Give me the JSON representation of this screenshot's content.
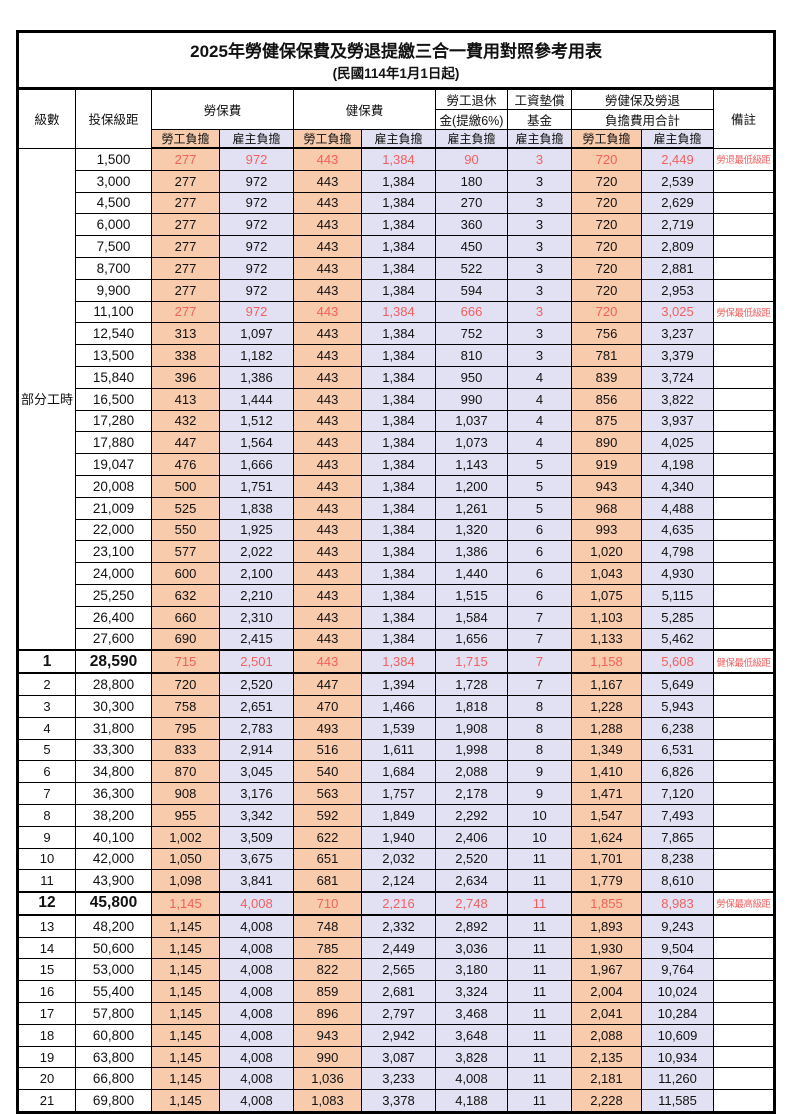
{
  "title": "2025年勞健保保費及勞退提繳三合一費用對照參考用表",
  "subtitle": "(民國114年1月1日起)",
  "header": {
    "level": "級數",
    "bracket": "投保級距",
    "labor_fee": "勞保費",
    "health_fee": "健保費",
    "pension_l1": "勞工退休",
    "pension_l2": "金(提繳6%)",
    "fund_l1": "工資墊償",
    "fund_l2": "基金",
    "total_l1": "勞健保及勞退",
    "total_l2": "負擔費用合計",
    "employee": "勞工負擔",
    "employer": "雇主負擔",
    "remarks": "備註"
  },
  "colors": {
    "employee_bg": "#F8CBAD",
    "employer_bg": "#E2E1F3",
    "highlight_text": "#F25F5F",
    "border": "#000000"
  },
  "table": {
    "part_time_label": "部分工時",
    "part_time_span": 23,
    "rows": [
      {
        "l": "",
        "g": true,
        "b": "1,500",
        "v": [
          "277",
          "972",
          "443",
          "1,384",
          "90",
          "3",
          "720",
          "2,449"
        ],
        "n": "勞退最低級距",
        "red": true
      },
      {
        "l": null,
        "b": "3,000",
        "v": [
          "277",
          "972",
          "443",
          "1,384",
          "180",
          "3",
          "720",
          "2,539"
        ],
        "n": ""
      },
      {
        "l": null,
        "b": "4,500",
        "v": [
          "277",
          "972",
          "443",
          "1,384",
          "270",
          "3",
          "720",
          "2,629"
        ],
        "n": ""
      },
      {
        "l": null,
        "b": "6,000",
        "v": [
          "277",
          "972",
          "443",
          "1,384",
          "360",
          "3",
          "720",
          "2,719"
        ],
        "n": ""
      },
      {
        "l": null,
        "b": "7,500",
        "v": [
          "277",
          "972",
          "443",
          "1,384",
          "450",
          "3",
          "720",
          "2,809"
        ],
        "n": ""
      },
      {
        "l": null,
        "b": "8,700",
        "v": [
          "277",
          "972",
          "443",
          "1,384",
          "522",
          "3",
          "720",
          "2,881"
        ],
        "n": ""
      },
      {
        "l": null,
        "b": "9,900",
        "v": [
          "277",
          "972",
          "443",
          "1,384",
          "594",
          "3",
          "720",
          "2,953"
        ],
        "n": ""
      },
      {
        "l": null,
        "b": "11,100",
        "v": [
          "277",
          "972",
          "443",
          "1,384",
          "666",
          "3",
          "720",
          "3,025"
        ],
        "n": "勞保最低級距",
        "red": true
      },
      {
        "l": null,
        "b": "12,540",
        "v": [
          "313",
          "1,097",
          "443",
          "1,384",
          "752",
          "3",
          "756",
          "3,237"
        ],
        "n": ""
      },
      {
        "l": null,
        "b": "13,500",
        "v": [
          "338",
          "1,182",
          "443",
          "1,384",
          "810",
          "3",
          "781",
          "3,379"
        ],
        "n": ""
      },
      {
        "l": null,
        "b": "15,840",
        "v": [
          "396",
          "1,386",
          "443",
          "1,384",
          "950",
          "4",
          "839",
          "3,724"
        ],
        "n": ""
      },
      {
        "l": null,
        "b": "16,500",
        "v": [
          "413",
          "1,444",
          "443",
          "1,384",
          "990",
          "4",
          "856",
          "3,822"
        ],
        "n": ""
      },
      {
        "l": null,
        "b": "17,280",
        "v": [
          "432",
          "1,512",
          "443",
          "1,384",
          "1,037",
          "4",
          "875",
          "3,937"
        ],
        "n": ""
      },
      {
        "l": null,
        "b": "17,880",
        "v": [
          "447",
          "1,564",
          "443",
          "1,384",
          "1,073",
          "4",
          "890",
          "4,025"
        ],
        "n": ""
      },
      {
        "l": null,
        "b": "19,047",
        "v": [
          "476",
          "1,666",
          "443",
          "1,384",
          "1,143",
          "5",
          "919",
          "4,198"
        ],
        "n": ""
      },
      {
        "l": null,
        "b": "20,008",
        "v": [
          "500",
          "1,751",
          "443",
          "1,384",
          "1,200",
          "5",
          "943",
          "4,340"
        ],
        "n": ""
      },
      {
        "l": null,
        "b": "21,009",
        "v": [
          "525",
          "1,838",
          "443",
          "1,384",
          "1,261",
          "5",
          "968",
          "4,488"
        ],
        "n": ""
      },
      {
        "l": null,
        "b": "22,000",
        "v": [
          "550",
          "1,925",
          "443",
          "1,384",
          "1,320",
          "6",
          "993",
          "4,635"
        ],
        "n": ""
      },
      {
        "l": null,
        "b": "23,100",
        "v": [
          "577",
          "2,022",
          "443",
          "1,384",
          "1,386",
          "6",
          "1,020",
          "4,798"
        ],
        "n": ""
      },
      {
        "l": null,
        "b": "24,000",
        "v": [
          "600",
          "2,100",
          "443",
          "1,384",
          "1,440",
          "6",
          "1,043",
          "4,930"
        ],
        "n": ""
      },
      {
        "l": null,
        "b": "25,250",
        "v": [
          "632",
          "2,210",
          "443",
          "1,384",
          "1,515",
          "6",
          "1,075",
          "5,115"
        ],
        "n": ""
      },
      {
        "l": null,
        "b": "26,400",
        "v": [
          "660",
          "2,310",
          "443",
          "1,384",
          "1,584",
          "7",
          "1,103",
          "5,285"
        ],
        "n": ""
      },
      {
        "l": null,
        "b": "27,600",
        "v": [
          "690",
          "2,415",
          "443",
          "1,384",
          "1,656",
          "7",
          "1,133",
          "5,462"
        ],
        "n": ""
      },
      {
        "l": "1",
        "b": "28,590",
        "v": [
          "715",
          "2,501",
          "443",
          "1,384",
          "1,715",
          "7",
          "1,158",
          "5,608"
        ],
        "n": "健保最低級距",
        "red": true,
        "box": true,
        "big": true
      },
      {
        "l": "2",
        "b": "28,800",
        "v": [
          "720",
          "2,520",
          "447",
          "1,394",
          "1,728",
          "7",
          "1,167",
          "5,649"
        ],
        "n": ""
      },
      {
        "l": "3",
        "b": "30,300",
        "v": [
          "758",
          "2,651",
          "470",
          "1,466",
          "1,818",
          "8",
          "1,228",
          "5,943"
        ],
        "n": ""
      },
      {
        "l": "4",
        "b": "31,800",
        "v": [
          "795",
          "2,783",
          "493",
          "1,539",
          "1,908",
          "8",
          "1,288",
          "6,238"
        ],
        "n": ""
      },
      {
        "l": "5",
        "b": "33,300",
        "v": [
          "833",
          "2,914",
          "516",
          "1,611",
          "1,998",
          "8",
          "1,349",
          "6,531"
        ],
        "n": ""
      },
      {
        "l": "6",
        "b": "34,800",
        "v": [
          "870",
          "3,045",
          "540",
          "1,684",
          "2,088",
          "9",
          "1,410",
          "6,826"
        ],
        "n": ""
      },
      {
        "l": "7",
        "b": "36,300",
        "v": [
          "908",
          "3,176",
          "563",
          "1,757",
          "2,178",
          "9",
          "1,471",
          "7,120"
        ],
        "n": ""
      },
      {
        "l": "8",
        "b": "38,200",
        "v": [
          "955",
          "3,342",
          "592",
          "1,849",
          "2,292",
          "10",
          "1,547",
          "7,493"
        ],
        "n": ""
      },
      {
        "l": "9",
        "b": "40,100",
        "v": [
          "1,002",
          "3,509",
          "622",
          "1,940",
          "2,406",
          "10",
          "1,624",
          "7,865"
        ],
        "n": ""
      },
      {
        "l": "10",
        "b": "42,000",
        "v": [
          "1,050",
          "3,675",
          "651",
          "2,032",
          "2,520",
          "11",
          "1,701",
          "8,238"
        ],
        "n": ""
      },
      {
        "l": "11",
        "b": "43,900",
        "v": [
          "1,098",
          "3,841",
          "681",
          "2,124",
          "2,634",
          "11",
          "1,779",
          "8,610"
        ],
        "n": ""
      },
      {
        "l": "12",
        "b": "45,800",
        "v": [
          "1,145",
          "4,008",
          "710",
          "2,216",
          "2,748",
          "11",
          "1,855",
          "8,983"
        ],
        "n": "勞保最高級距",
        "red": true,
        "box": true,
        "big": true
      },
      {
        "l": "13",
        "b": "48,200",
        "v": [
          "1,145",
          "4,008",
          "748",
          "2,332",
          "2,892",
          "11",
          "1,893",
          "9,243"
        ],
        "n": ""
      },
      {
        "l": "14",
        "b": "50,600",
        "v": [
          "1,145",
          "4,008",
          "785",
          "2,449",
          "3,036",
          "11",
          "1,930",
          "9,504"
        ],
        "n": ""
      },
      {
        "l": "15",
        "b": "53,000",
        "v": [
          "1,145",
          "4,008",
          "822",
          "2,565",
          "3,180",
          "11",
          "1,967",
          "9,764"
        ],
        "n": ""
      },
      {
        "l": "16",
        "b": "55,400",
        "v": [
          "1,145",
          "4,008",
          "859",
          "2,681",
          "3,324",
          "11",
          "2,004",
          "10,024"
        ],
        "n": ""
      },
      {
        "l": "17",
        "b": "57,800",
        "v": [
          "1,145",
          "4,008",
          "896",
          "2,797",
          "3,468",
          "11",
          "2,041",
          "10,284"
        ],
        "n": ""
      },
      {
        "l": "18",
        "b": "60,800",
        "v": [
          "1,145",
          "4,008",
          "943",
          "2,942",
          "3,648",
          "11",
          "2,088",
          "10,609"
        ],
        "n": ""
      },
      {
        "l": "19",
        "b": "63,800",
        "v": [
          "1,145",
          "4,008",
          "990",
          "3,087",
          "3,828",
          "11",
          "2,135",
          "10,934"
        ],
        "n": ""
      },
      {
        "l": "20",
        "b": "66,800",
        "v": [
          "1,145",
          "4,008",
          "1,036",
          "3,233",
          "4,008",
          "11",
          "2,181",
          "11,260"
        ],
        "n": ""
      },
      {
        "l": "21",
        "b": "69,800",
        "v": [
          "1,145",
          "4,008",
          "1,083",
          "3,378",
          "4,188",
          "11",
          "2,228",
          "11,585"
        ],
        "n": ""
      }
    ]
  }
}
